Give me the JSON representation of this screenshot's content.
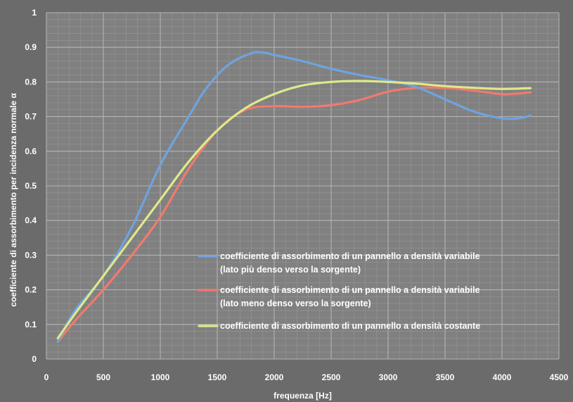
{
  "chart_data": {
    "type": "line",
    "title": "",
    "xlabel": "frequenza [Hz]",
    "ylabel": "coefficiente di assorbimento per incidenza normale α",
    "xlim": [
      0,
      4500
    ],
    "ylim": [
      0,
      1
    ],
    "xticks": [
      0,
      500,
      1000,
      1500,
      2000,
      2500,
      3000,
      3500,
      4000,
      4500
    ],
    "xtick_labels": [
      "0",
      "500",
      "1000",
      "1500",
      "2000",
      "2500",
      "3000",
      "3500",
      "4000",
      "4500"
    ],
    "yticks": [
      0,
      0.1,
      0.2,
      0.3,
      0.4,
      0.5,
      0.6,
      0.7,
      0.8,
      0.9,
      1
    ],
    "ytick_labels": [
      "0",
      "0.1",
      "0.2",
      "0.3",
      "0.4",
      "0.5",
      "0.6",
      "0.7",
      "0.8",
      "0.9",
      "1"
    ],
    "grid": true,
    "minor_grid": true,
    "legend_position": "bottom-right",
    "series": [
      {
        "name": "coefficiente di assorbimento di un pannello a densità variabile (lato più denso verso la sorgente)",
        "legend_lines": [
          "coefficiente di assorbimento  di un pannello  a densità variabile",
          "(lato più denso verso la sorgente)"
        ],
        "color": "#6fa3de",
        "x": [
          100,
          250,
          500,
          750,
          1000,
          1250,
          1400,
          1600,
          1800,
          1900,
          2000,
          2250,
          2500,
          2750,
          3000,
          3250,
          3500,
          3750,
          4000,
          4150,
          4250
        ],
        "y": [
          0.05,
          0.14,
          0.24,
          0.38,
          0.56,
          0.7,
          0.78,
          0.85,
          0.883,
          0.885,
          0.878,
          0.86,
          0.838,
          0.82,
          0.805,
          0.785,
          0.75,
          0.715,
          0.695,
          0.695,
          0.703
        ]
      },
      {
        "name": "coefficiente di assorbimento di un pannello a densità variabile (lato meno denso verso la sorgente)",
        "legend_lines": [
          "coefficiente di assorbimento  di un pannello  a densità variabile",
          "(lato meno denso verso la sorgente)"
        ],
        "color": "#f07a6e",
        "x": [
          100,
          250,
          500,
          750,
          1000,
          1250,
          1500,
          1750,
          2000,
          2250,
          2500,
          2750,
          3000,
          3250,
          3500,
          3750,
          4000,
          4150,
          4250
        ],
        "y": [
          0.05,
          0.11,
          0.2,
          0.3,
          0.41,
          0.55,
          0.66,
          0.72,
          0.73,
          0.728,
          0.733,
          0.748,
          0.772,
          0.783,
          0.783,
          0.775,
          0.765,
          0.767,
          0.77
        ]
      },
      {
        "name": "coefficiente di assorbimento di un pannello a densità costante",
        "legend_lines": [
          "coefficiente di assorbimento  di un pannello  a densità costante"
        ],
        "color": "#dde98a",
        "x": [
          100,
          250,
          500,
          750,
          1000,
          1250,
          1500,
          1750,
          2000,
          2250,
          2500,
          2750,
          3000,
          3250,
          3500,
          3750,
          4000,
          4250
        ],
        "y": [
          0.06,
          0.13,
          0.24,
          0.35,
          0.46,
          0.57,
          0.66,
          0.725,
          0.765,
          0.79,
          0.8,
          0.803,
          0.8,
          0.795,
          0.788,
          0.783,
          0.78,
          0.782
        ]
      }
    ]
  }
}
